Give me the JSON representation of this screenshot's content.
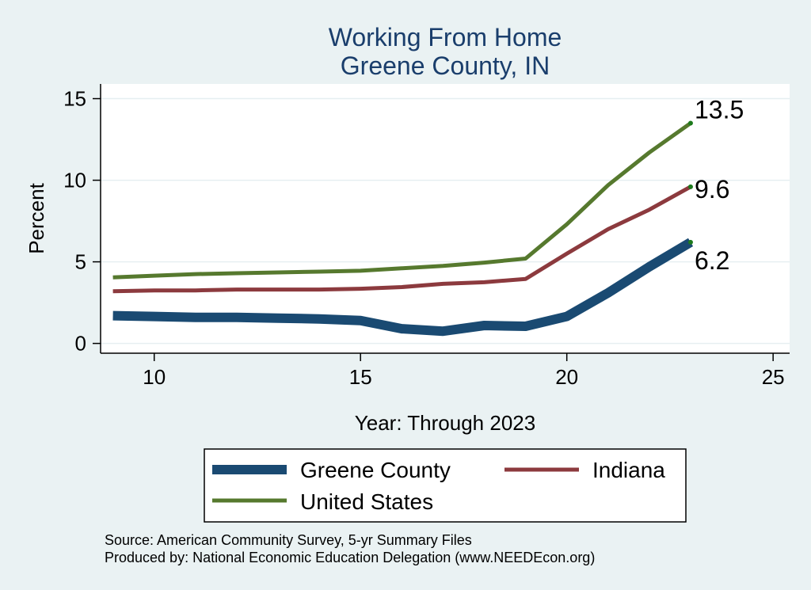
{
  "chart_data": {
    "type": "line",
    "title": "Working From Home",
    "subtitle": "Greene County, IN",
    "xlabel": "Year: Through 2023",
    "ylabel": "Percent",
    "xlim": [
      8.7,
      25.4
    ],
    "ylim": [
      -0.6,
      15.9
    ],
    "xticks": [
      10,
      15,
      20,
      25
    ],
    "yticks": [
      0,
      5,
      10,
      15
    ],
    "grid": true,
    "x": [
      9,
      10,
      11,
      12,
      13,
      14,
      15,
      16,
      17,
      18,
      19,
      20,
      21,
      22,
      23
    ],
    "series": [
      {
        "name": "Greene County",
        "color": "#1a4a72",
        "values": [
          1.7,
          1.65,
          1.6,
          1.6,
          1.55,
          1.5,
          1.4,
          0.9,
          0.75,
          1.1,
          1.05,
          1.65,
          3.1,
          4.7,
          6.2
        ],
        "end_label": "6.2"
      },
      {
        "name": "Indiana",
        "color": "#8c3a3e",
        "values": [
          3.2,
          3.25,
          3.25,
          3.3,
          3.3,
          3.3,
          3.35,
          3.45,
          3.65,
          3.75,
          3.95,
          5.5,
          7.0,
          8.2,
          9.6
        ],
        "end_label": "9.6"
      },
      {
        "name": "United States",
        "color": "#56792e",
        "values": [
          4.05,
          4.15,
          4.25,
          4.3,
          4.35,
          4.4,
          4.45,
          4.6,
          4.75,
          4.95,
          5.2,
          7.3,
          9.7,
          11.7,
          13.5
        ],
        "end_label": "13.5"
      }
    ],
    "legend": {
      "placement": "bottom",
      "entries": [
        "Greene County",
        "Indiana",
        "United States"
      ]
    },
    "notes": [
      "Source: American Community Survey, 5-yr Summary Files",
      "Produced by: National Economic Education Delegation (www.NEEDEcon.org)"
    ]
  },
  "colors": {
    "background": "#eaf2f3",
    "plot_background": "#ffffff",
    "grid": "#e6eff1",
    "title": "#1a3e6c",
    "end_point": "#1c7a1c"
  }
}
